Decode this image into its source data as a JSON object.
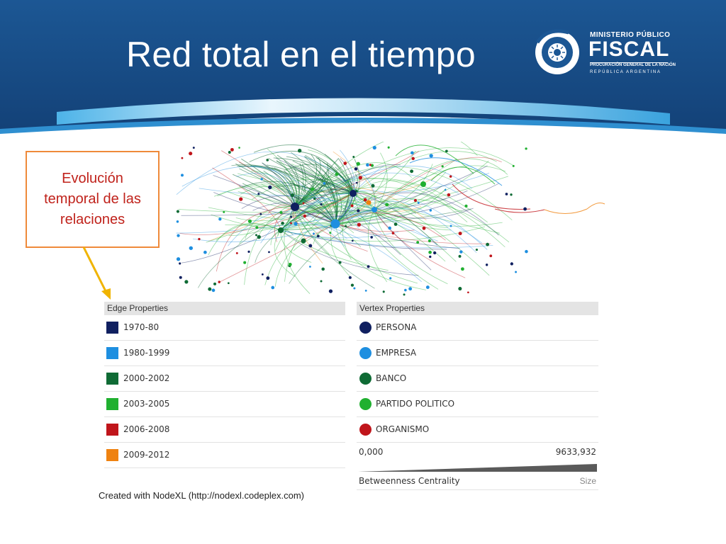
{
  "slide": {
    "title": "Red total en el tiempo",
    "callout_text": "Evolución\ntemporal de las\nrelaciones",
    "credit": "Created with NodeXL (http://nodexl.codeplex.com)"
  },
  "logo": {
    "line1": "MINISTERIO PÚBLICO",
    "line2": "FISCAL",
    "line3": "PROCURACIÓN GENERAL DE LA NACIÓN",
    "line4": "REPÚBLICA ARGENTINA"
  },
  "edge_properties": {
    "header": "Edge Properties",
    "items": [
      {
        "label": "1970-80",
        "color": "#102060"
      },
      {
        "label": "1980-1999",
        "color": "#1e8fe0"
      },
      {
        "label": "2000-2002",
        "color": "#0f6b35"
      },
      {
        "label": "2003-2005",
        "color": "#20b030"
      },
      {
        "label": "2006-2008",
        "color": "#c0151b"
      },
      {
        "label": "2009-2012",
        "color": "#ef8210"
      }
    ]
  },
  "vertex_properties": {
    "header": "Vertex Properties",
    "items": [
      {
        "label": "PERSONA",
        "color": "#102060"
      },
      {
        "label": "EMPRESA",
        "color": "#1e8fe0"
      },
      {
        "label": "BANCO",
        "color": "#0f6b35"
      },
      {
        "label": "PARTIDO POLITICO",
        "color": "#20b030"
      },
      {
        "label": "ORGANISMO",
        "color": "#c0151b"
      }
    ],
    "scale_min": "0,000",
    "scale_max": "9633,932",
    "scale_label": "Betweenness Centrality",
    "scale_type": "Size"
  },
  "colors": {
    "header_blue": "#1a4a86",
    "callout_border": "#ef8a3a",
    "callout_text": "#c0221b",
    "arrow": "#f0b400"
  }
}
